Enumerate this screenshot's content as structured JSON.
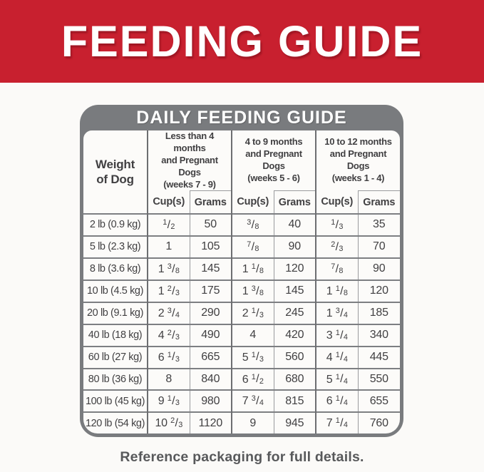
{
  "banner": {
    "title": "FEEDING GUIDE",
    "bg_color": "#c8202f",
    "text_color": "#ffffff"
  },
  "table": {
    "title": "DAILY FEEDING GUIDE",
    "header_bg": "#797b7e",
    "border_color": "#6d6e71",
    "text_color": "#414042",
    "weight_header_lines": [
      "Weight",
      "of Dog"
    ],
    "groups": [
      {
        "label_lines": [
          "Less than 4 months",
          "and Pregnant Dogs",
          "(weeks 7 - 9)"
        ]
      },
      {
        "label_lines": [
          "4 to 9 months",
          "and Pregnant Dogs",
          "(weeks 5 - 6)"
        ]
      },
      {
        "label_lines": [
          "10 to 12 months",
          "and Pregnant Dogs",
          "(weeks 1 - 4)"
        ]
      }
    ],
    "subheaders": [
      "Cup(s)",
      "Grams"
    ],
    "rows": [
      {
        "weight": "2 lb (0.9 kg)",
        "values": [
          "1/2",
          "50",
          "3/8",
          "40",
          "1/3",
          "35"
        ]
      },
      {
        "weight": "5 lb (2.3 kg)",
        "values": [
          "1",
          "105",
          "7/8",
          "90",
          "2/3",
          "70"
        ]
      },
      {
        "weight": "8 lb (3.6 kg)",
        "values": [
          "1 3/8",
          "145",
          "1 1/8",
          "120",
          "7/8",
          "90"
        ]
      },
      {
        "weight": "10 lb (4.5 kg)",
        "values": [
          "1 2/3",
          "175",
          "1 3/8",
          "145",
          "1 1/8",
          "120"
        ]
      },
      {
        "weight": "20 lb (9.1 kg)",
        "values": [
          "2 3/4",
          "290",
          "2 1/3",
          "245",
          "1 3/4",
          "185"
        ]
      },
      {
        "weight": "40 lb (18 kg)",
        "values": [
          "4 2/3",
          "490",
          "4",
          "420",
          "3 1/4",
          "340"
        ]
      },
      {
        "weight": "60 lb (27 kg)",
        "values": [
          "6 1/3",
          "665",
          "5 1/3",
          "560",
          "4 1/4",
          "445"
        ]
      },
      {
        "weight": "80 lb (36 kg)",
        "values": [
          "8",
          "840",
          "6 1/2",
          "680",
          "5 1/4",
          "550"
        ]
      },
      {
        "weight": "100 lb (45 kg)",
        "values": [
          "9 1/3",
          "980",
          "7 3/4",
          "815",
          "6 1/4",
          "655"
        ]
      },
      {
        "weight": "120 lb (54 kg)",
        "values": [
          "10 2/3",
          "1120",
          "9",
          "945",
          "7 1/4",
          "760"
        ]
      }
    ]
  },
  "footer": {
    "note": "Reference packaging for full details."
  }
}
